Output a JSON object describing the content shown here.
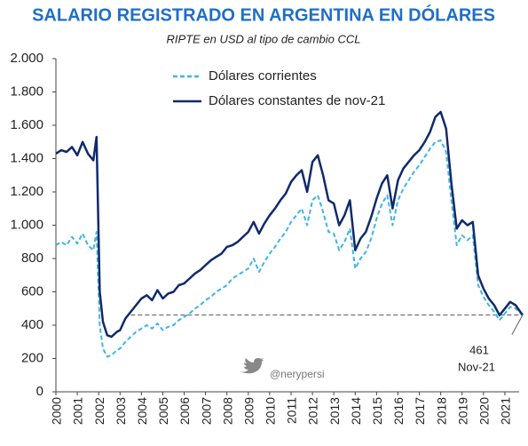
{
  "chart_data": {
    "type": "line",
    "title": "SALARIO REGISTRADO EN ARGENTINA EN DÓLARES",
    "subtitle": "RIPTE en USD al tipo de cambio CCL",
    "watermark": "@nerypersi",
    "x": [
      2000,
      2000.25,
      2000.5,
      2000.75,
      2001,
      2001.25,
      2001.5,
      2001.75,
      2001.9,
      2002.05,
      2002.2,
      2002.4,
      2002.6,
      2002.85,
      2003,
      2003.25,
      2003.5,
      2003.75,
      2004,
      2004.25,
      2004.5,
      2004.75,
      2005,
      2005.25,
      2005.5,
      2005.75,
      2006,
      2006.25,
      2006.5,
      2006.75,
      2007,
      2007.25,
      2007.5,
      2007.75,
      2008,
      2008.25,
      2008.5,
      2008.75,
      2009,
      2009.25,
      2009.5,
      2009.75,
      2010,
      2010.25,
      2010.5,
      2010.75,
      2011,
      2011.25,
      2011.5,
      2011.75,
      2012,
      2012.25,
      2012.5,
      2012.75,
      2013,
      2013.25,
      2013.5,
      2013.75,
      2014,
      2014.25,
      2014.5,
      2014.75,
      2015,
      2015.25,
      2015.5,
      2015.75,
      2016,
      2016.25,
      2016.5,
      2016.75,
      2017,
      2017.25,
      2017.5,
      2017.75,
      2018,
      2018.25,
      2018.5,
      2018.75,
      2019,
      2019.25,
      2019.5,
      2019.75,
      2020,
      2020.25,
      2020.5,
      2020.75,
      2021,
      2021.25,
      2021.5,
      2021.83
    ],
    "series": [
      {
        "name": "Dólares corrientes",
        "color": "#3fb4e5",
        "dashed": true,
        "values": [
          880,
          900,
          880,
          930,
          890,
          950,
          880,
          850,
          960,
          400,
          260,
          210,
          220,
          250,
          260,
          300,
          330,
          360,
          380,
          400,
          380,
          410,
          370,
          390,
          400,
          430,
          450,
          470,
          500,
          520,
          550,
          570,
          600,
          620,
          640,
          680,
          700,
          720,
          740,
          800,
          720,
          780,
          830,
          870,
          920,
          960,
          1020,
          1060,
          1100,
          1000,
          1150,
          1180,
          1080,
          960,
          950,
          850,
          900,
          980,
          740,
          800,
          840,
          920,
          1040,
          1130,
          1180,
          1000,
          1150,
          1220,
          1270,
          1320,
          1360,
          1410,
          1460,
          1500,
          1510,
          1440,
          1150,
          880,
          940,
          910,
          940,
          640,
          570,
          520,
          480,
          430,
          470,
          510,
          500,
          461
        ]
      },
      {
        "name": "Dólares constantes de nov-21",
        "color": "#0f2a6b",
        "dashed": false,
        "values": [
          1430,
          1450,
          1440,
          1470,
          1420,
          1500,
          1430,
          1390,
          1530,
          600,
          420,
          340,
          330,
          360,
          370,
          440,
          480,
          520,
          560,
          580,
          550,
          610,
          560,
          590,
          600,
          640,
          650,
          680,
          710,
          730,
          760,
          790,
          810,
          830,
          870,
          880,
          900,
          930,
          960,
          1020,
          950,
          1010,
          1060,
          1100,
          1150,
          1190,
          1260,
          1300,
          1330,
          1200,
          1380,
          1420,
          1300,
          1150,
          1130,
          1000,
          1060,
          1150,
          850,
          920,
          960,
          1050,
          1160,
          1250,
          1300,
          1100,
          1270,
          1340,
          1380,
          1420,
          1450,
          1500,
          1560,
          1650,
          1680,
          1580,
          1250,
          980,
          1030,
          1000,
          1020,
          700,
          620,
          560,
          520,
          460,
          500,
          540,
          520,
          461
        ]
      }
    ],
    "reference": {
      "value": 461,
      "label": "461",
      "date_label": "Nov-21"
    },
    "xlim": [
      2000,
      2022
    ],
    "xticks": [
      2000,
      2001,
      2002,
      2003,
      2004,
      2005,
      2006,
      2007,
      2008,
      2009,
      2010,
      2011,
      2012,
      2013,
      2014,
      2015,
      2016,
      2017,
      2018,
      2019,
      2020,
      2021
    ],
    "ylim": [
      0,
      2000
    ],
    "yticks": [
      0,
      200,
      400,
      600,
      800,
      {
        "value": 1000,
        "label": "1.000"
      },
      {
        "value": 1200,
        "label": "1.200"
      },
      {
        "value": 1400,
        "label": "1.400"
      },
      {
        "value": 1600,
        "label": "1.600"
      },
      {
        "value": 1800,
        "label": "1.800"
      },
      {
        "value": 2000,
        "label": "2.000"
      }
    ],
    "legend": "top-left"
  }
}
